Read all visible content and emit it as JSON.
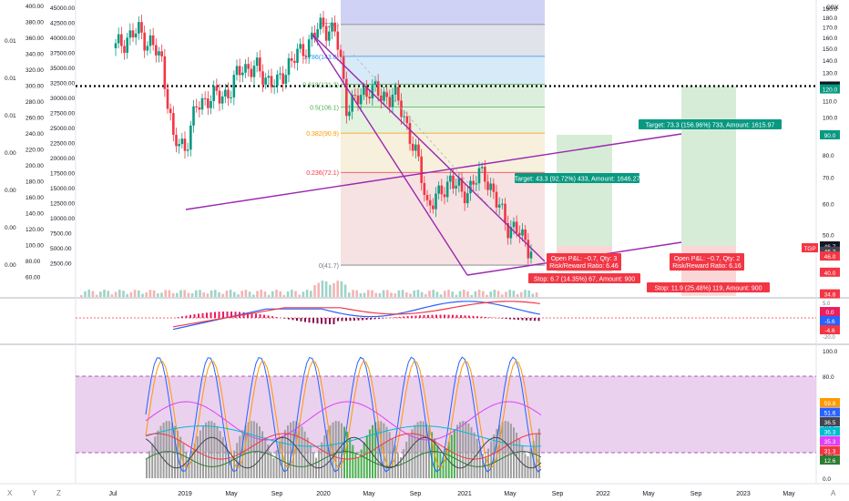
{
  "chart_data": {
    "type": "candlestick",
    "title": "",
    "x_ticks": [
      "Jul",
      "2019",
      "May",
      "Sep",
      "2020",
      "May",
      "Sep",
      "2021",
      "May",
      "Sep",
      "2022",
      "May",
      "Sep",
      "2023",
      "May"
    ],
    "price_axis": {
      "currency": "GBX",
      "ylim": [
        30,
        200
      ],
      "scale": "log",
      "ticks": [
        "190.0",
        "180.0",
        "170.0",
        "160.0",
        "150.0",
        "140.0",
        "130.0",
        "110.0",
        "100.0",
        "90.0",
        "80.0",
        "70.0",
        "60.0",
        "50.0",
        "40.0",
        "30.0"
      ],
      "badges": [
        {
          "text": "120.0",
          "value": 120,
          "color": "#131722"
        },
        {
          "text": "120.0",
          "value": 118,
          "color": "#089981"
        },
        {
          "text": "90.0",
          "value": 90,
          "color": "#089981"
        },
        {
          "text": "46.7",
          "value": 46.7,
          "color": "#131722"
        },
        {
          "text": "46.7",
          "value": 45.3,
          "color": "#434651"
        },
        {
          "text": "46.0",
          "value": 44.0,
          "color": "#f23645"
        },
        {
          "text": "40.0",
          "value": 40,
          "color": "#f23645"
        },
        {
          "text": "34.8",
          "value": 35.2,
          "color": "#f23645"
        }
      ],
      "ticker_badge": "TGP"
    },
    "left_axes": {
      "a": [
        "400.00",
        "380.00",
        "360.00",
        "340.00",
        "320.00",
        "300.00",
        "280.00",
        "260.00",
        "240.00",
        "220.00",
        "200.00",
        "180.00",
        "160.00",
        "140.00",
        "120.00",
        "100.00",
        "80.00",
        "60.00"
      ],
      "b": [
        "45000.00",
        "42500.00",
        "40000.00",
        "37500.00",
        "35000.00",
        "32500.00",
        "30000.00",
        "27500.00",
        "25000.00",
        "22500.00",
        "20000.00",
        "17500.00",
        "15000.00",
        "12500.00",
        "10000.00",
        "7500.00",
        "5000.00",
        "2500.00"
      ],
      "c": [
        "0.01",
        "0.01",
        "0.01",
        "0.00",
        "0.00",
        "0.00",
        "0.00"
      ]
    },
    "price_series": {
      "monthly_close": [
        {
          "m": "2018-07",
          "v": 150
        },
        {
          "m": "2018-08",
          "v": 160
        },
        {
          "m": "2018-09",
          "v": 165
        },
        {
          "m": "2018-10",
          "v": 155
        },
        {
          "m": "2018-11",
          "v": 138
        },
        {
          "m": "2018-12",
          "v": 86
        },
        {
          "m": "2019-01",
          "v": 84
        },
        {
          "m": "2019-02",
          "v": 105
        },
        {
          "m": "2019-03",
          "v": 113
        },
        {
          "m": "2019-04",
          "v": 112
        },
        {
          "m": "2019-05",
          "v": 118
        },
        {
          "m": "2019-06",
          "v": 135
        },
        {
          "m": "2019-07",
          "v": 133
        },
        {
          "m": "2019-08",
          "v": 127
        },
        {
          "m": "2019-09",
          "v": 120
        },
        {
          "m": "2019-10",
          "v": 138
        },
        {
          "m": "2019-11",
          "v": 145
        },
        {
          "m": "2019-12",
          "v": 160
        },
        {
          "m": "2020-01",
          "v": 172
        },
        {
          "m": "2020-02",
          "v": 165
        },
        {
          "m": "2020-03",
          "v": 108
        },
        {
          "m": "2020-04",
          "v": 110
        },
        {
          "m": "2020-05",
          "v": 120
        },
        {
          "m": "2020-06",
          "v": 112
        },
        {
          "m": "2020-07",
          "v": 115
        },
        {
          "m": "2020-08",
          "v": 100
        },
        {
          "m": "2020-09",
          "v": 80
        },
        {
          "m": "2020-10",
          "v": 60
        },
        {
          "m": "2020-11",
          "v": 62
        },
        {
          "m": "2020-12",
          "v": 70
        },
        {
          "m": "2021-01",
          "v": 63
        },
        {
          "m": "2021-02",
          "v": 68
        },
        {
          "m": "2021-03",
          "v": 72
        },
        {
          "m": "2021-04",
          "v": 60
        },
        {
          "m": "2021-05",
          "v": 53
        },
        {
          "m": "2021-06",
          "v": 50
        },
        {
          "m": "2021-07",
          "v": 46
        }
      ],
      "last": 46.7
    },
    "fibonacci": [
      {
        "label": "(172.6)",
        "value": 172.6,
        "color": "#787b86",
        "fill": "#e1e3ea"
      },
      {
        "label": "0.786(143.0)",
        "value": 143.0,
        "color": "#2196f3",
        "fill": "#d7eaf8"
      },
      {
        "label": "0.618(121.3)",
        "value": 121.3,
        "color": "#4caf50",
        "fill": "#dcefdc"
      },
      {
        "label": "0.5(106.1)",
        "value": 106.1,
        "color": "#4caf50",
        "fill": "#e4f2e0"
      },
      {
        "label": "0.382(90.9)",
        "value": 90.9,
        "color": "#ff9800",
        "fill": "#f6f0dc"
      },
      {
        "label": "0.236(72.1)",
        "value": 72.1,
        "color": "#f23645",
        "fill": "#f6e2e2"
      },
      {
        "label": "0(41.7)",
        "value": 41.7,
        "color": "#787b86",
        "fill": ""
      }
    ],
    "horizontal_level": {
      "value": 120,
      "color": "#000000"
    },
    "positions": [
      {
        "entry": 46.7,
        "target": 90.0,
        "stop": 40.0,
        "target_text": "Target: 43.3 (92.72%) 433, Amount: 1646.27",
        "stop_text": "Stop: 6.7 (14.35%) 67, Amount: 900",
        "pnl_text": "Open P&L: −0.7, Qty: 3",
        "rr_text": "Risk/Reward Ratio: 6.46"
      },
      {
        "entry": 46.7,
        "target": 120.0,
        "stop": 34.8,
        "target_text": "Target: 73.3 (156.96%) 733, Amount: 1615.97",
        "stop_text": "Stop: 11.9 (25.48%) 119, Amount: 900",
        "pnl_text": "Open P&L: −0.7, Qty: 2",
        "rr_text": "Risk/Reward Ratio: 6.16"
      }
    ],
    "macd": {
      "badges": [
        {
          "text": "0.0",
          "color": "#e91e63"
        },
        {
          "text": "-5.6",
          "color": "#2962ff"
        },
        {
          "text": "-4.6",
          "color": "#f23645"
        }
      ],
      "axis_ticks": [
        "5.0",
        "-20.0"
      ]
    },
    "oscillator": {
      "axis_ticks": [
        "100.0",
        "80.0",
        "60.0",
        "40.0",
        "20.0",
        "0.0"
      ],
      "band": [
        20,
        80
      ],
      "badges": [
        {
          "text": "59.8",
          "color": "#ff9800"
        },
        {
          "text": "51.6",
          "color": "#2962ff"
        },
        {
          "text": "36.5",
          "color": "#434651"
        },
        {
          "text": "36.3",
          "color": "#00bcd4"
        },
        {
          "text": "35.3",
          "color": "#e040fb"
        },
        {
          "text": "31.3",
          "color": "#f23645"
        },
        {
          "text": "12.6",
          "color": "#2e7d32"
        }
      ]
    },
    "colors": {
      "up": "#089981",
      "down": "#f23645",
      "trendline": "#9c27b0"
    }
  },
  "footer": {
    "x": "X",
    "y": "Y",
    "z": "Z",
    "a": "A"
  }
}
